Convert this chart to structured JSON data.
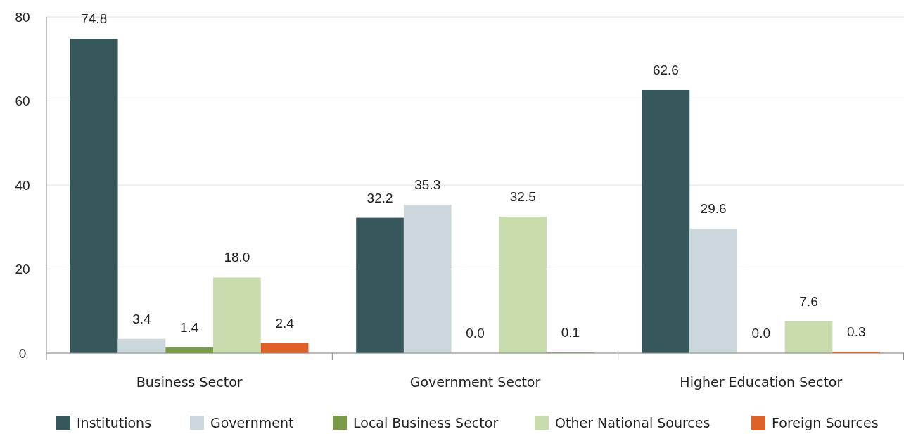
{
  "chart_data": {
    "type": "bar",
    "categories": [
      "Business Sector",
      "Government Sector",
      "Higher Education Sector"
    ],
    "series": [
      {
        "name": "Institutions",
        "color": "#36585c",
        "values": [
          74.8,
          32.2,
          62.6
        ],
        "value_labels": [
          "74.8",
          "32.2",
          "62.6"
        ]
      },
      {
        "name": "Government",
        "color": "#cdd8dc",
        "values": [
          3.4,
          35.3,
          29.6
        ],
        "value_labels": [
          "3.4",
          "35.3",
          "29.6"
        ]
      },
      {
        "name": "Local Business Sector",
        "color": "#7a9a44",
        "values": [
          1.4,
          0.0,
          0.0
        ],
        "value_labels": [
          "1.4",
          "0.0",
          "0.0"
        ]
      },
      {
        "name": "Other National Sources",
        "color": "#c8dcae",
        "values": [
          18.0,
          32.5,
          7.6
        ],
        "value_labels": [
          "18.0",
          "32.5",
          "7.6"
        ]
      },
      {
        "name": "Foreign Sources",
        "color": "#e0602a",
        "values": [
          2.4,
          0.1,
          0.3
        ],
        "value_labels": [
          "2.4",
          "0.1",
          "0.3"
        ]
      }
    ],
    "ylim": [
      0,
      80
    ],
    "yticks": [
      0,
      20,
      40,
      60,
      80
    ],
    "grid": "y",
    "legend": "bottom"
  }
}
